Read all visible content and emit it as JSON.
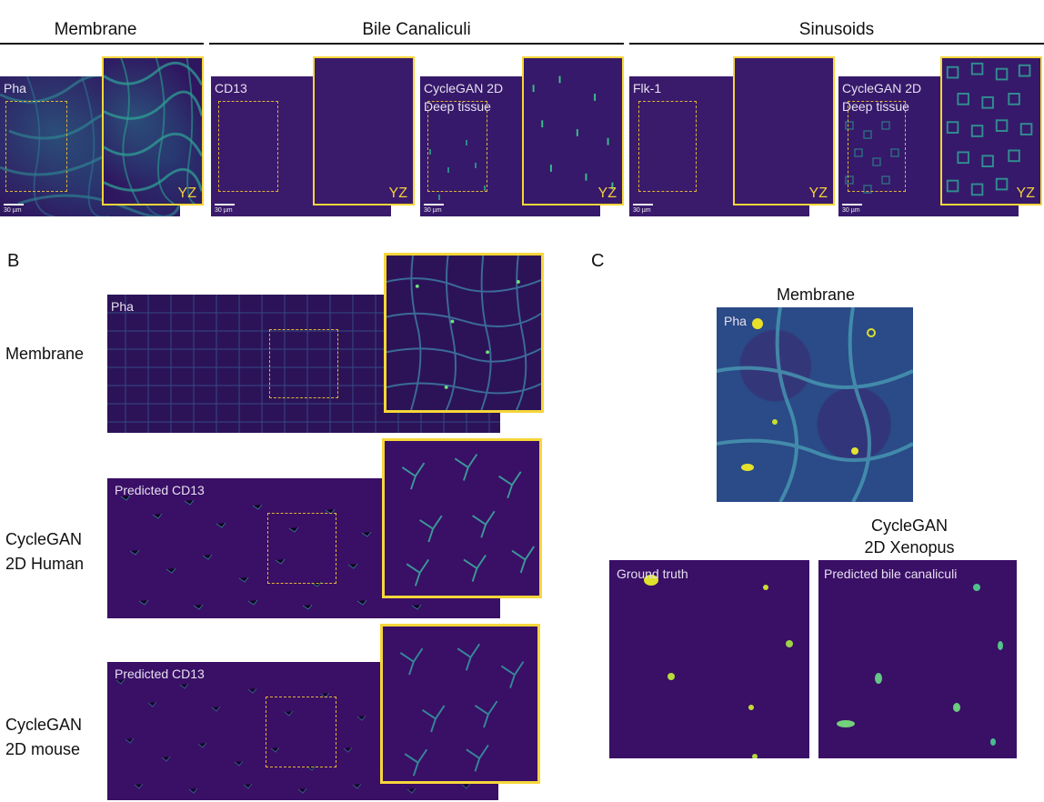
{
  "panel_a": {
    "headers": {
      "membrane": "Membrane",
      "bile": "Bile Canaliculi",
      "sinusoids": "Sinusoids"
    },
    "tiles": [
      {
        "label": "Pha",
        "label2": "",
        "yz": "YZ",
        "scale": "30 µm"
      },
      {
        "label": "CD13",
        "label2": "",
        "yz": "YZ",
        "scale": "30 µm"
      },
      {
        "label": "CycleGAN 2D",
        "label2": "Deep tissue",
        "yz": "YZ",
        "scale": "30 µm"
      },
      {
        "label": "Flk-1",
        "label2": "",
        "yz": "YZ",
        "scale": "30 µm"
      },
      {
        "label": "CycleGAN 2D",
        "label2": "Deep tissue",
        "yz": "YZ",
        "scale": "30 µm"
      }
    ]
  },
  "panel_b": {
    "letter": "B",
    "rows": [
      {
        "label1": "Membrane",
        "label2": "",
        "tag": "Pha"
      },
      {
        "label1": "CycleGAN",
        "label2": "2D Human",
        "tag": "Predicted CD13"
      },
      {
        "label1": "CycleGAN",
        "label2": "2D mouse",
        "tag": "Predicted CD13"
      }
    ]
  },
  "panel_c": {
    "letter": "C",
    "membrane_title": "Membrane",
    "membrane_tag": "Pha",
    "cyclegan_title1": "CycleGAN",
    "cyclegan_title2": "2D Xenopus",
    "ground_truth": "Ground truth",
    "predicted": "Predicted bile canaliculi"
  },
  "colors": {
    "accent_yellow": "#f6d63a",
    "viridis_dark": "#3a0f66",
    "viridis_teal": "#2a9d8f"
  }
}
